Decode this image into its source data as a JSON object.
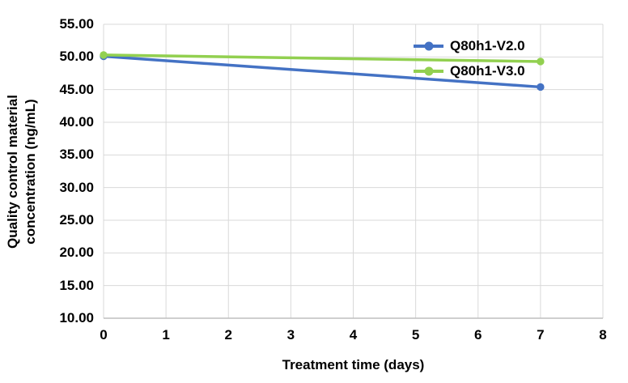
{
  "chart_data": {
    "type": "line",
    "title": "",
    "xlabel": "Treatment time (days)",
    "ylabel": "Quality control material concentration (ng/mL)",
    "ylabel_lines": [
      "Quality control material",
      "concentration (ng/mL)"
    ],
    "x": [
      0,
      7
    ],
    "series": [
      {
        "name": "Q80h1-V2.0",
        "color": "#4472C4",
        "values": [
          50.1,
          45.4
        ]
      },
      {
        "name": "Q80h1-V3.0",
        "color": "#92D050",
        "values": [
          50.3,
          49.3
        ]
      }
    ],
    "xlim": [
      0,
      8
    ],
    "ylim": [
      10,
      55
    ],
    "x_ticks": [
      0,
      1,
      2,
      3,
      4,
      5,
      6,
      7,
      8
    ],
    "y_ticks": [
      55,
      50,
      45,
      40,
      35,
      30,
      25,
      20,
      15,
      10
    ],
    "y_tick_decimals": 2,
    "grid": true,
    "legend_position": "inside-top-right"
  },
  "colors": {
    "gridline": "#D9D9D9",
    "axis_line": "#BFBFBF",
    "text": "#000000",
    "background": "#FFFFFF"
  }
}
